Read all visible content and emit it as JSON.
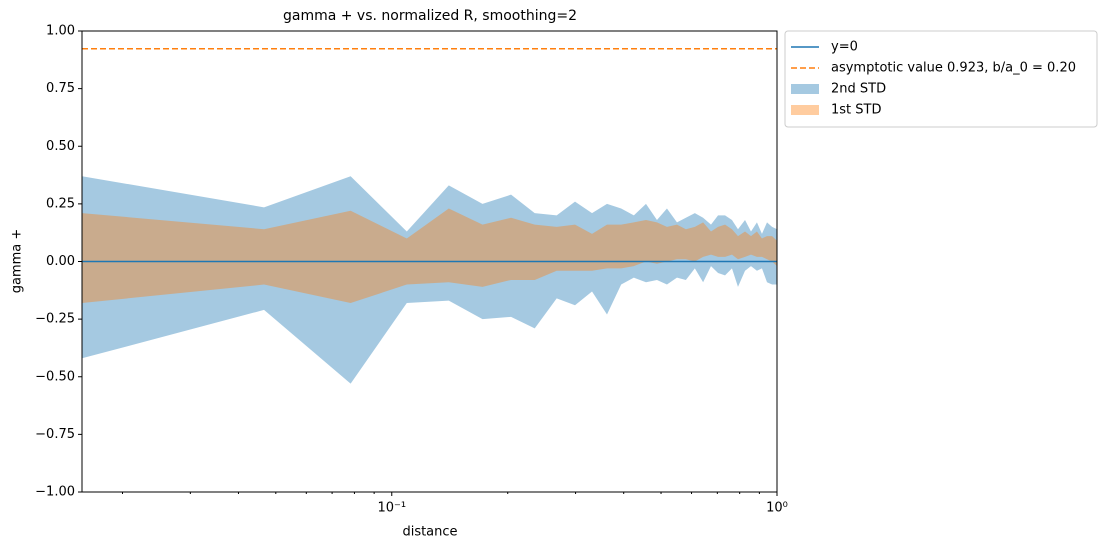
{
  "chart_data": {
    "type": "band",
    "title": "gamma + vs. normalized R, smoothing=2",
    "xlabel": "distance",
    "ylabel": "gamma +",
    "xscale": "log",
    "xlim": [
      0.0157,
      1
    ],
    "ylim": [
      -1,
      1
    ],
    "xticks": [
      {
        "value": 0.1,
        "label": "10⁻¹"
      },
      {
        "value": 1,
        "label": "10⁰"
      }
    ],
    "xminorticks": [
      0.02,
      0.03,
      0.04,
      0.05,
      0.06,
      0.07,
      0.08,
      0.09,
      0.2,
      0.3,
      0.4,
      0.5,
      0.6,
      0.7,
      0.8,
      0.9
    ],
    "yticks": [
      {
        "value": -1,
        "label": "−1.00"
      },
      {
        "value": -0.75,
        "label": "−0.75"
      },
      {
        "value": -0.5,
        "label": "−0.50"
      },
      {
        "value": -0.25,
        "label": "−0.25"
      },
      {
        "value": 0,
        "label": "0.00"
      },
      {
        "value": 0.25,
        "label": "0.25"
      },
      {
        "value": 0.5,
        "label": "0.50"
      },
      {
        "value": 0.75,
        "label": "0.75"
      },
      {
        "value": 1,
        "label": "1.00"
      }
    ],
    "legend": "outside upper right",
    "x": [
      0.0157,
      0.0466,
      0.0782,
      0.1094,
      0.1406,
      0.172,
      0.204,
      0.235,
      0.268,
      0.299,
      0.331,
      0.362,
      0.394,
      0.425,
      0.457,
      0.488,
      0.518,
      0.55,
      0.58,
      0.612,
      0.643,
      0.674,
      0.703,
      0.733,
      0.764,
      0.792,
      0.826,
      0.856,
      0.887,
      0.914,
      0.942,
      0.971,
      1.0
    ],
    "series": [
      {
        "name": "y=0",
        "kind": "hline",
        "color": "#1f77b4",
        "linestyle": "solid",
        "y": 0
      },
      {
        "name": "asymptotic value 0.923, b/a_0 = 0.20",
        "kind": "hline",
        "color": "#ff7f0e",
        "linestyle": "dashed",
        "y": 0.923
      },
      {
        "name": "2nd STD",
        "kind": "band",
        "color": "#1f77b4",
        "alpha": 0.4,
        "upper": [
          0.37,
          0.235,
          0.37,
          0.13,
          0.33,
          0.25,
          0.29,
          0.21,
          0.2,
          0.26,
          0.21,
          0.25,
          0.23,
          0.2,
          0.25,
          0.18,
          0.23,
          0.17,
          0.19,
          0.21,
          0.19,
          0.16,
          0.2,
          0.2,
          0.18,
          0.14,
          0.18,
          0.13,
          0.17,
          0.12,
          0.17,
          0.15,
          0.14
        ],
        "lower": [
          -0.42,
          -0.21,
          -0.53,
          -0.18,
          -0.17,
          -0.25,
          -0.24,
          -0.29,
          -0.16,
          -0.19,
          -0.13,
          -0.23,
          -0.1,
          -0.07,
          -0.09,
          -0.08,
          -0.1,
          -0.07,
          -0.08,
          -0.03,
          -0.09,
          -0.02,
          -0.05,
          -0.06,
          -0.03,
          -0.11,
          -0.04,
          -0.02,
          -0.04,
          -0.03,
          -0.09,
          -0.1,
          -0.1
        ]
      },
      {
        "name": "1st STD",
        "kind": "band",
        "color": "#ff7f0e",
        "alpha": 0.4,
        "upper": [
          0.21,
          0.14,
          0.22,
          0.1,
          0.23,
          0.16,
          0.19,
          0.16,
          0.15,
          0.16,
          0.12,
          0.16,
          0.16,
          0.17,
          0.18,
          0.17,
          0.15,
          0.16,
          0.14,
          0.15,
          0.17,
          0.13,
          0.15,
          0.16,
          0.14,
          0.11,
          0.13,
          0.11,
          0.13,
          0.1,
          0.11,
          0.11,
          0.09
        ],
        "lower": [
          -0.18,
          -0.1,
          -0.18,
          -0.1,
          -0.09,
          -0.11,
          -0.08,
          -0.08,
          -0.04,
          -0.04,
          -0.04,
          -0.03,
          -0.03,
          -0.02,
          0.0,
          -0.01,
          0.0,
          0.01,
          0.01,
          0.0,
          0.02,
          0.03,
          0.02,
          0.02,
          0.03,
          0.01,
          0.02,
          0.03,
          0.02,
          0.02,
          0.01,
          0.0,
          -0.02
        ]
      }
    ]
  }
}
